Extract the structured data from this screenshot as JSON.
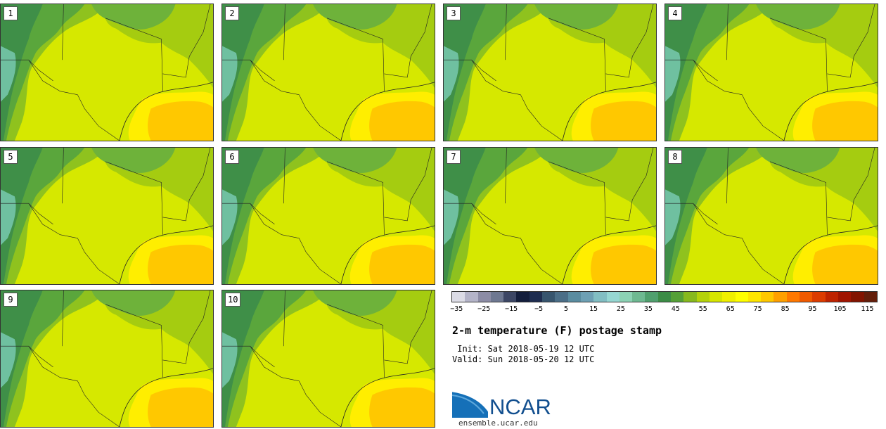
{
  "panels": [
    {
      "label": "1"
    },
    {
      "label": "2"
    },
    {
      "label": "3"
    },
    {
      "label": "4"
    },
    {
      "label": "5"
    },
    {
      "label": "6"
    },
    {
      "label": "7"
    },
    {
      "label": "8"
    },
    {
      "label": "9"
    },
    {
      "label": "10"
    }
  ],
  "colorbar": {
    "colors": [
      "#dcdce6",
      "#b4b4c8",
      "#8c8ca5",
      "#6e7891",
      "#3c4664",
      "#141e3c",
      "#1e2d50",
      "#37556e",
      "#4b6e87",
      "#5a8ca0",
      "#6ea0b4",
      "#82bec3",
      "#96d7d2",
      "#8cd2b4",
      "#6eb991",
      "#50a06e",
      "#3c8c46",
      "#55a037",
      "#87b91e",
      "#b4d20a",
      "#d7e600",
      "#f0f000",
      "#ffff00",
      "#ffe600",
      "#ffc800",
      "#ffa000",
      "#ff7800",
      "#f05a00",
      "#dc3c00",
      "#be2300",
      "#a01400",
      "#821400",
      "#641e0a"
    ],
    "ticks": [
      "−35",
      "−25",
      "−15",
      "−5",
      "5",
      "15",
      "25",
      "35",
      "45",
      "55",
      "65",
      "75",
      "85",
      "95",
      "105",
      "115"
    ]
  },
  "title": "2-m temperature (F) postage stamp",
  "init": " Init: Sat 2018-05-19 12 UTC",
  "valid": "Valid: Sun 2018-05-20 12 UTC",
  "logo": {
    "text": "NCAR",
    "url": "ensemble.ucar.edu",
    "color": "#124f8f"
  }
}
